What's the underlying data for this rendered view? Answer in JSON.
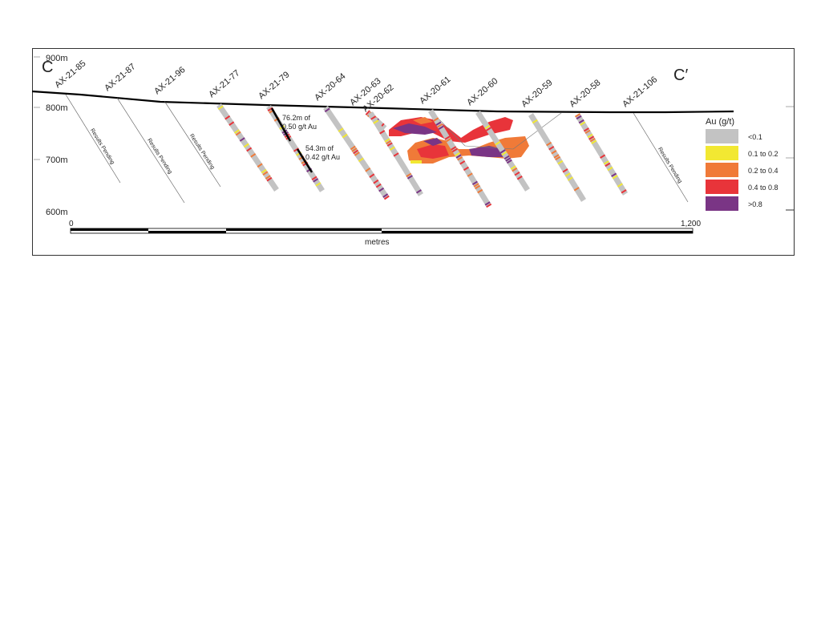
{
  "section": {
    "start_label": "C",
    "end_label": "C′"
  },
  "elevations": [
    "900m",
    "800m",
    "700m",
    "600m"
  ],
  "holes": [
    {
      "name": "AX-21-85",
      "status": "Results Pending"
    },
    {
      "name": "AX-21-87",
      "status": "Results Pending"
    },
    {
      "name": "AX-21-96",
      "status": "Results Pending"
    },
    {
      "name": "AX-21-77",
      "status": "assayed"
    },
    {
      "name": "AX-21-79",
      "status": "assayed"
    },
    {
      "name": "AX-20-64",
      "status": "assayed"
    },
    {
      "name": "AX-20-63",
      "status": "assayed"
    },
    {
      "name": "AX-20-62",
      "status": "assayed"
    },
    {
      "name": "AX-20-61",
      "status": "assayed"
    },
    {
      "name": "AX-20-60",
      "status": "assayed"
    },
    {
      "name": "AX-20-59",
      "status": "assayed"
    },
    {
      "name": "AX-20-58",
      "status": "assayed"
    },
    {
      "name": "AX-21-106",
      "status": "Results Pending"
    }
  ],
  "intercepts": [
    {
      "line1": "76.2m of",
      "line2": "0.50 g/t Au"
    },
    {
      "line1": "54.3m of",
      "line2": "0.42 g/t Au"
    }
  ],
  "legend": {
    "title": "Au (g/t)",
    "items": [
      {
        "label": "<0.1",
        "color": "#c3c3c3"
      },
      {
        "label": "0.1 to 0.2",
        "color": "#f2e832"
      },
      {
        "label": "0.2 to 0.4",
        "color": "#f07a38"
      },
      {
        "label": "0.4 to 0.8",
        "color": "#e8343a"
      },
      {
        "label": ">0.8",
        "color": "#7a3585"
      }
    ]
  },
  "scale": {
    "start": "0",
    "end": "1,200",
    "unit": "metres"
  }
}
